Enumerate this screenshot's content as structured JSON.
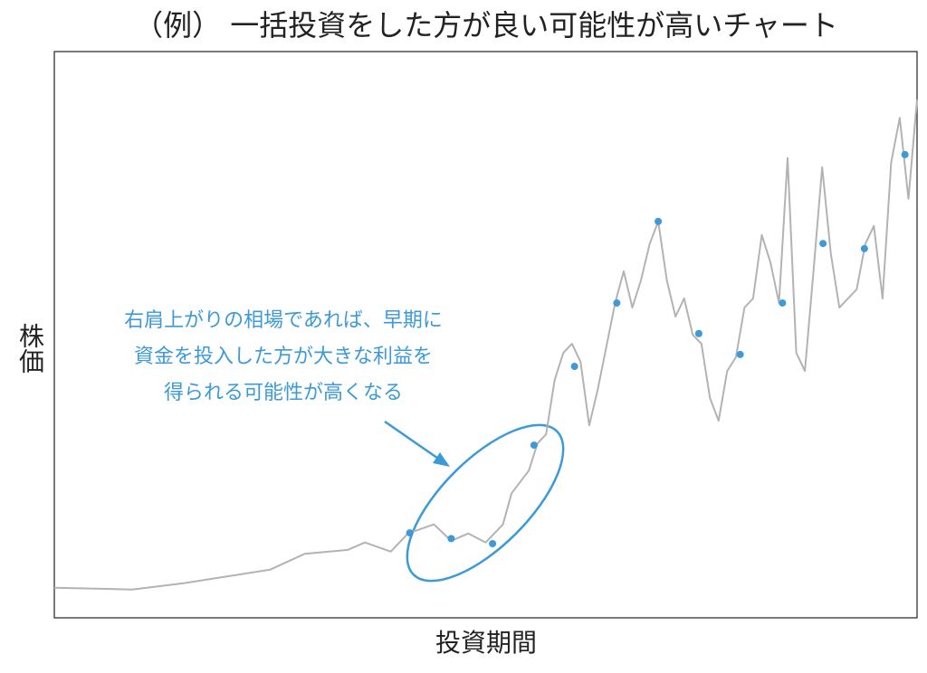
{
  "chart_data": {
    "type": "line",
    "title": "（例） 一括投資をした方が良い可能性が高いチャート",
    "xlabel": "投資期間",
    "ylabel": "株価",
    "annotation": [
      "右肩上がりの相場であれば、早期に",
      "資金を投入した方が大きな利益を",
      "得られる可能性が高くなる"
    ],
    "xlim": [
      0,
      100
    ],
    "ylim": [
      0,
      100
    ],
    "series": [
      {
        "color": "#b3b3b3",
        "x": [
          0,
          9,
          15,
          20,
          25,
          29,
          34,
          36,
          39,
          41,
          44,
          46,
          48,
          50,
          52,
          53,
          55,
          56,
          57,
          58,
          59,
          60,
          61,
          62,
          63,
          65,
          66,
          67,
          68,
          69,
          70,
          71,
          72,
          73,
          74,
          75,
          76,
          77,
          78,
          79,
          80,
          81,
          82,
          83,
          84,
          85,
          86,
          87,
          88,
          89,
          90,
          91,
          93,
          94,
          95,
          96,
          97,
          98,
          99,
          100
        ],
        "values": [
          5.3,
          5,
          6.1,
          7.3,
          8.5,
          11.3,
          12,
          13.3,
          11.7,
          14.9,
          16.5,
          13.6,
          14.9,
          13.3,
          16.5,
          22,
          26,
          30.8,
          32.4,
          42,
          46.8,
          48.4,
          45.2,
          34,
          40.4,
          55.6,
          61.2,
          54.8,
          59.6,
          66,
          70,
          59.6,
          53.2,
          56.4,
          50,
          48.4,
          38.8,
          34.8,
          43.6,
          46,
          54.8,
          56.4,
          67.6,
          62.8,
          55.6,
          81.2,
          46.8,
          43.6,
          61.2,
          79.6,
          64.4,
          54.8,
          58,
          66,
          69.2,
          56.4,
          80.4,
          88.3,
          74,
          91.5
        ]
      },
      {
        "color": "#3d9ad8",
        "x": [
          41.2,
          46,
          50.8,
          55.6,
          60.3,
          65.2,
          70,
          74.7,
          79.5,
          84.4,
          89.1,
          93.9,
          98.6
        ],
        "values": [
          15,
          14,
          13.1,
          30.5,
          44.4,
          55.6,
          70,
          50.2,
          46.5,
          55.6,
          66.1,
          65.2,
          81.8
        ],
        "marker": true
      }
    ]
  }
}
